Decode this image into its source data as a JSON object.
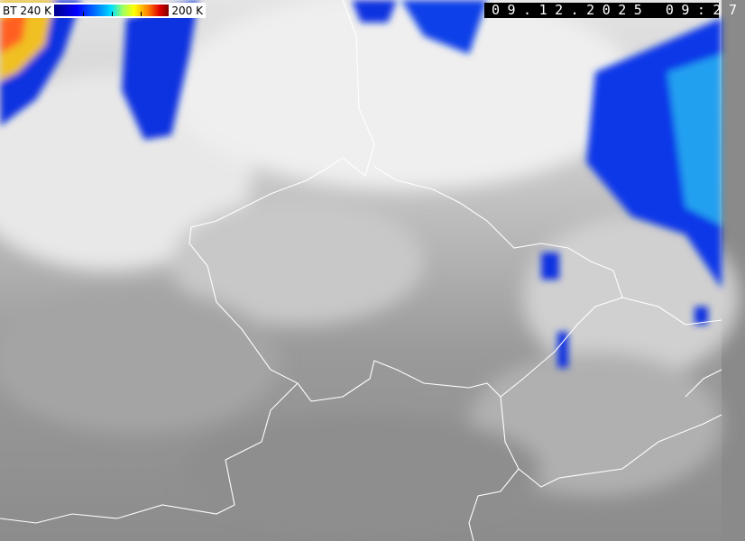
{
  "legend": {
    "left_label": "BT 240 K",
    "right_label": "200 K",
    "colors": [
      "#00008a",
      "#0000ff",
      "#0080ff",
      "#00e0ff",
      "#a0ff60",
      "#ffff00",
      "#ff8000",
      "#e00000",
      "#800000"
    ]
  },
  "timestamp": "09.12.2025 09:27",
  "border_color": "#ffffff"
}
